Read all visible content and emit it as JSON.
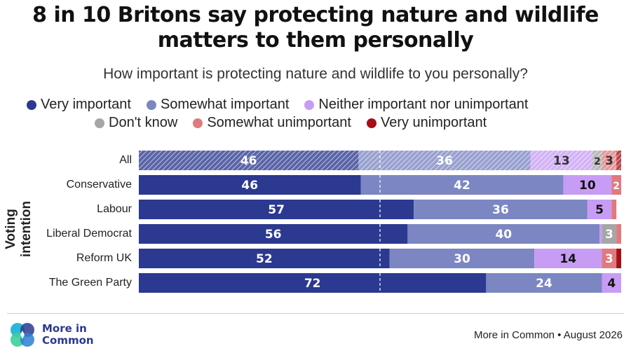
{
  "title_line1": "8 in 10 Britons say protecting nature and wildlife",
  "title_line2": "matters to them personally",
  "subtitle": "How important is protecting nature and wildlife to you personally?",
  "legend": [
    {
      "label": "Very important",
      "color": "#2b3990"
    },
    {
      "label": "Somewhat important",
      "color": "#7b86c2"
    },
    {
      "label": "Neither important nor unimportant",
      "color": "#c79cf5"
    },
    {
      "label": "Don't know",
      "color": "#a6a6a6"
    },
    {
      "label": "Somewhat unimportant",
      "color": "#e07a7e"
    },
    {
      "label": "Very unimportant",
      "color": "#a50f15"
    }
  ],
  "y_axis_label": "Voting intention",
  "source": "More in Common • August 2026",
  "logo": {
    "line1": "More in",
    "line2": "Common"
  },
  "chart_data": {
    "type": "bar",
    "orientation": "horizontal",
    "stacked": true,
    "categories": [
      "All",
      "Conservative",
      "Labour",
      "Liberal Democrat",
      "Reform UK",
      "The Green Party"
    ],
    "series": [
      {
        "name": "Very important",
        "values": [
          46,
          46,
          57,
          56,
          52,
          72
        ],
        "labels": [
          "46",
          "46",
          "57",
          "56",
          "52",
          "72"
        ]
      },
      {
        "name": "Somewhat important",
        "values": [
          36,
          42,
          36,
          40,
          30,
          24
        ],
        "labels": [
          "36",
          "42",
          "36",
          "40",
          "30",
          "24"
        ]
      },
      {
        "name": "Neither important nor unimportant",
        "values": [
          13,
          10,
          5,
          0.5,
          14,
          4
        ],
        "labels": [
          "13",
          "10",
          "5",
          "",
          "14",
          "4"
        ]
      },
      {
        "name": "Don't know",
        "values": [
          2,
          0,
          0,
          3,
          0,
          0
        ],
        "labels": [
          "2",
          "",
          "",
          "3",
          "",
          ""
        ]
      },
      {
        "name": "Somewhat unimportant",
        "values": [
          3,
          2,
          1,
          1,
          3,
          0
        ],
        "labels": [
          "3",
          "2",
          "",
          "",
          "3",
          ""
        ]
      },
      {
        "name": "Very unimportant",
        "values": [
          1,
          0,
          0,
          0,
          1,
          0
        ],
        "labels": [
          "",
          "",
          "",
          "",
          "",
          ""
        ]
      }
    ],
    "hatched_categories": [
      "All"
    ],
    "reference_line": 50,
    "xlim": [
      0,
      100
    ]
  }
}
